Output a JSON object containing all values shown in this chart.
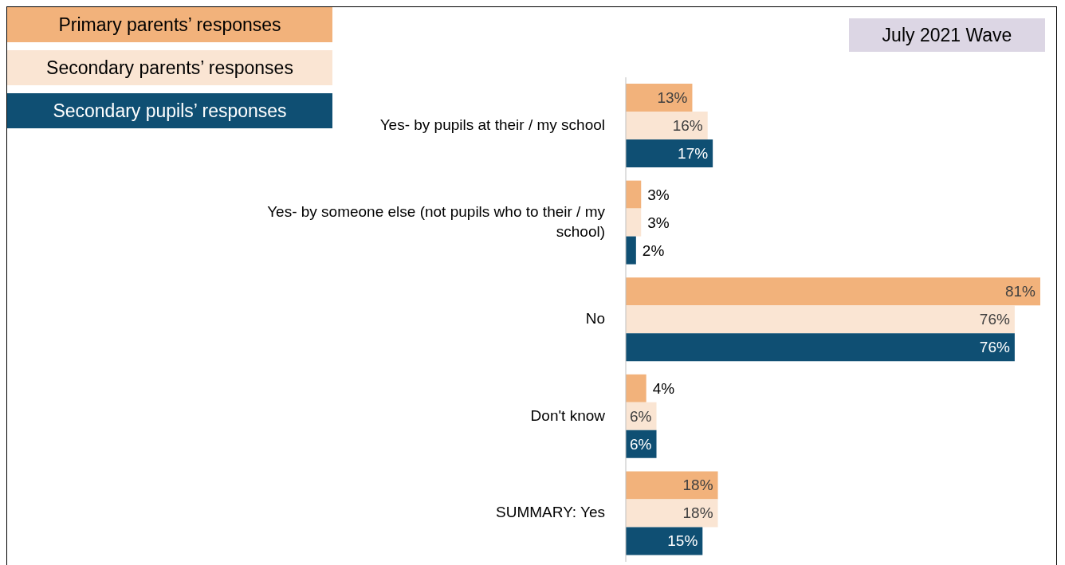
{
  "chart_data": {
    "type": "bar",
    "orientation": "horizontal",
    "categories": [
      "Yes- by pupils at their / my school",
      "Yes- by someone else (not pupils who to their / my school)",
      "No",
      "Don't know",
      "SUMMARY: Yes"
    ],
    "series": [
      {
        "name": "Primary parents’ responses",
        "color": "#f2b27b",
        "values": [
          13,
          3,
          81,
          4,
          18
        ],
        "value_labels": [
          "13%",
          "3%",
          "81%",
          "4%",
          "18%"
        ]
      },
      {
        "name": "Secondary parents’ responses",
        "color": "#fae5d3",
        "values": [
          16,
          3,
          76,
          6,
          18
        ],
        "value_labels": [
          "16%",
          "3%",
          "76%",
          "6%",
          "18%"
        ]
      },
      {
        "name": "Secondary pupils’ responses",
        "color": "#0f4f73",
        "values": [
          17,
          2,
          76,
          6,
          15
        ],
        "value_labels": [
          "17%",
          "2%",
          "76%",
          "6%",
          "15%"
        ]
      }
    ],
    "legend": "top left",
    "annotations": [
      "July 2021 Wave"
    ]
  }
}
